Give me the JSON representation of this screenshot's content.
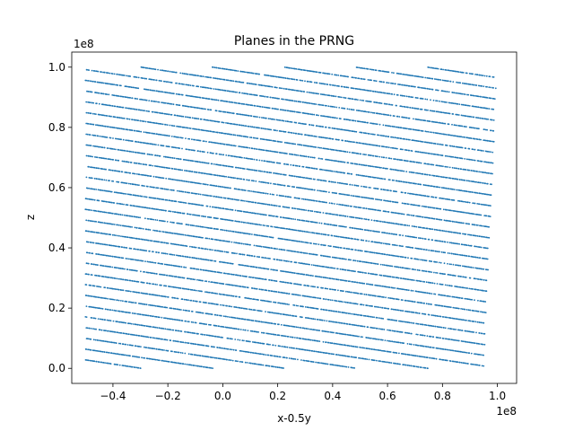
{
  "chart_data": {
    "type": "scatter",
    "title": "Planes in the PRNG",
    "xlabel": "x-0.5y",
    "ylabel": "z",
    "x_scale_label": "1e8",
    "y_scale_label": "1e8",
    "xlim": [
      -0.55,
      1.07
    ],
    "ylim": [
      -0.05,
      1.05
    ],
    "xticks": [
      -0.4,
      -0.2,
      0.0,
      0.2,
      0.4,
      0.6,
      0.8,
      1.0
    ],
    "xtick_labels": [
      "−0.4",
      "−0.2",
      "0.0",
      "0.2",
      "0.4",
      "0.6",
      "0.8",
      "1.0"
    ],
    "yticks": [
      0.0,
      0.2,
      0.4,
      0.6,
      0.8,
      1.0
    ],
    "ytick_labels": [
      "0.0",
      "0.2",
      "0.4",
      "0.6",
      "0.8",
      "1.0"
    ],
    "grid": false,
    "marker_color": "#1f77b4",
    "planes": {
      "slope": -0.137,
      "spacing": 0.0357,
      "z_first_line_at_x_minus_0_5": 0.028,
      "count": 34
    },
    "domain_boundaries": {
      "left": [
        [
          -0.5,
          0.0
        ],
        [
          -0.5,
          1.0
        ]
      ],
      "right": [
        [
          0.95,
          0.0
        ],
        [
          1.0,
          1.0
        ]
      ]
    }
  }
}
